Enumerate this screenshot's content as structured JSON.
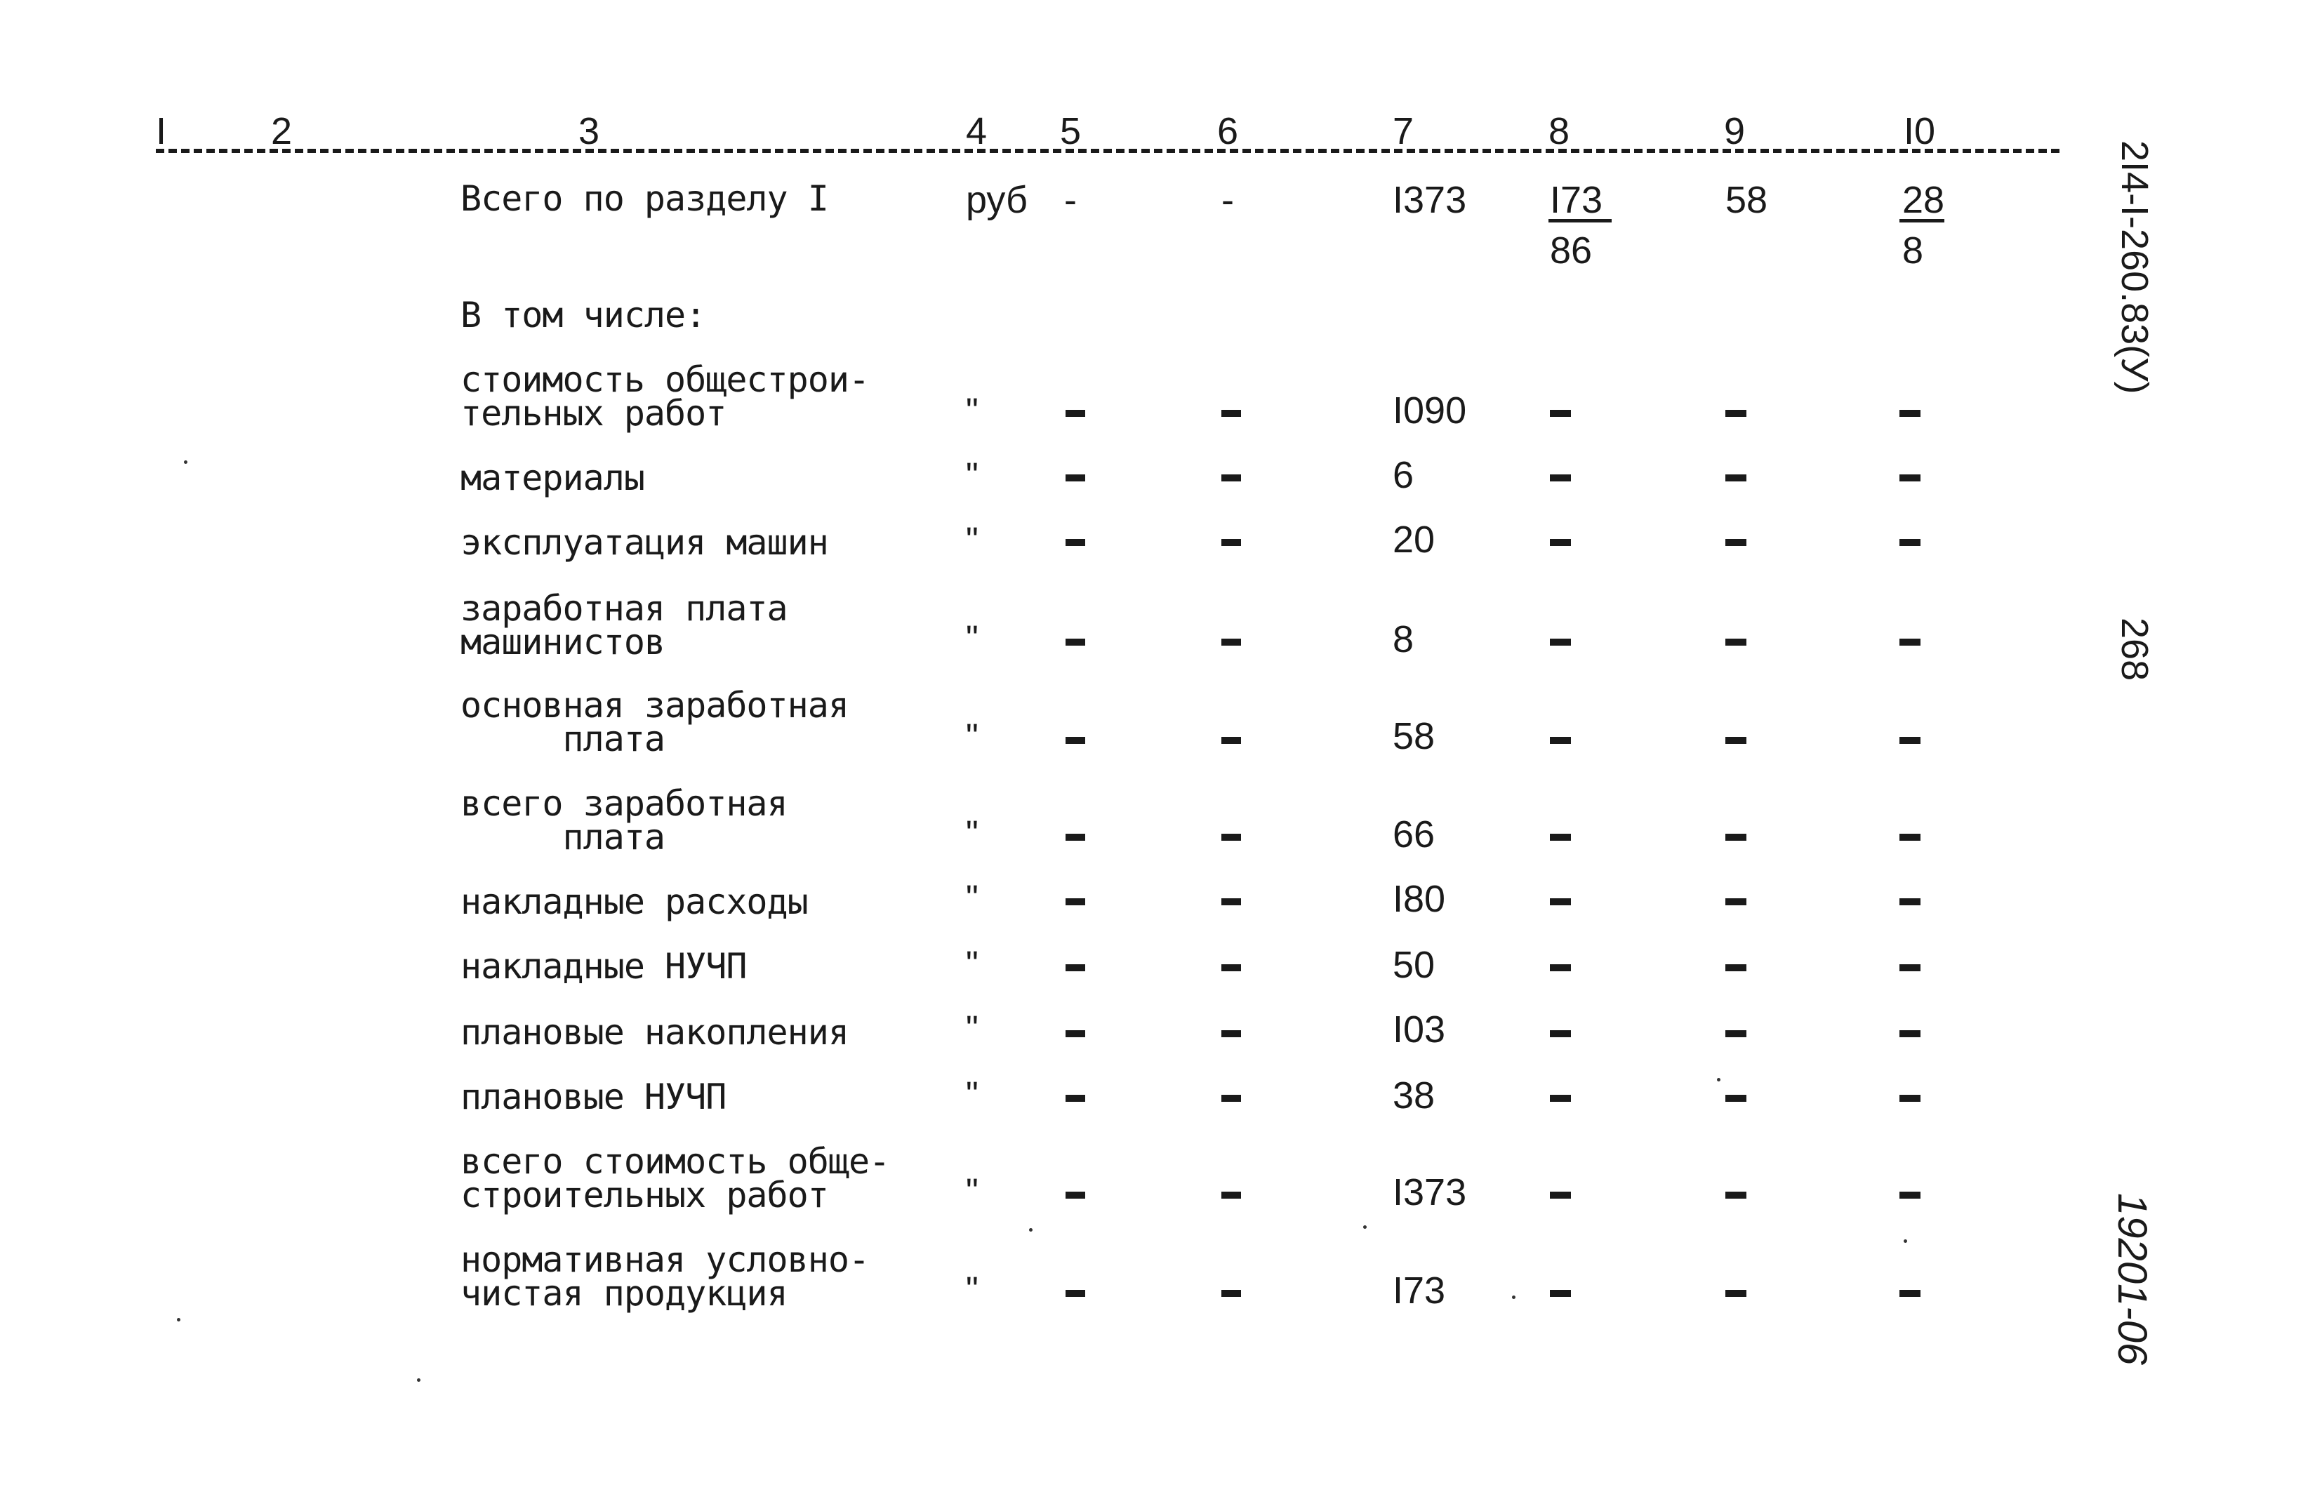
{
  "header_cols": [
    "I",
    "2",
    "3",
    "4",
    "5",
    "6",
    "7",
    "8",
    "9",
    "I0"
  ],
  "total": {
    "label": "Всего по разделу I",
    "unit": "руб",
    "c5": "-",
    "c6": "-",
    "c7": "I373",
    "c8_top": "I73",
    "c8_bottom": "86",
    "c9": "58",
    "c10_top": "28",
    "c10_bottom": "8"
  },
  "subheading": "В том числе:",
  "rows": [
    {
      "label": [
        "стоимость общестрои-",
        "тельных работ"
      ],
      "unit": "\"",
      "c7": "I090"
    },
    {
      "label": [
        "материалы"
      ],
      "unit": "\"",
      "c7": "6"
    },
    {
      "label": [
        "эксплуатация машин"
      ],
      "unit": "\"",
      "c7": "20"
    },
    {
      "label": [
        "заработная плата",
        "машинистов"
      ],
      "unit": "\"",
      "c7": "8"
    },
    {
      "label": [
        "основная заработная",
        "     плата"
      ],
      "unit": "\"",
      "c7": "58"
    },
    {
      "label": [
        "всего заработная",
        "     плата"
      ],
      "unit": "\"",
      "c7": "66"
    },
    {
      "label": [
        "накладные расходы"
      ],
      "unit": "\"",
      "c7": "I80"
    },
    {
      "label": [
        "накладные НУЧП"
      ],
      "unit": "\"",
      "c7": "50"
    },
    {
      "label": [
        "плановые накопления"
      ],
      "unit": "\"",
      "c7": "I03"
    },
    {
      "label": [
        "плановые НУЧП"
      ],
      "unit": "\"",
      "c7": "38"
    },
    {
      "label": [
        "всего стоимость обще-",
        "строительных работ"
      ],
      "unit": "\"",
      "c7": "I373"
    },
    {
      "label": [
        "нормативная условно-",
        "чистая продукция"
      ],
      "unit": "\"",
      "c7": "I73"
    }
  ],
  "side": {
    "doc_code": "2I4-I-260.83(У)",
    "page_number": "268",
    "archive_number": "19201-06"
  }
}
